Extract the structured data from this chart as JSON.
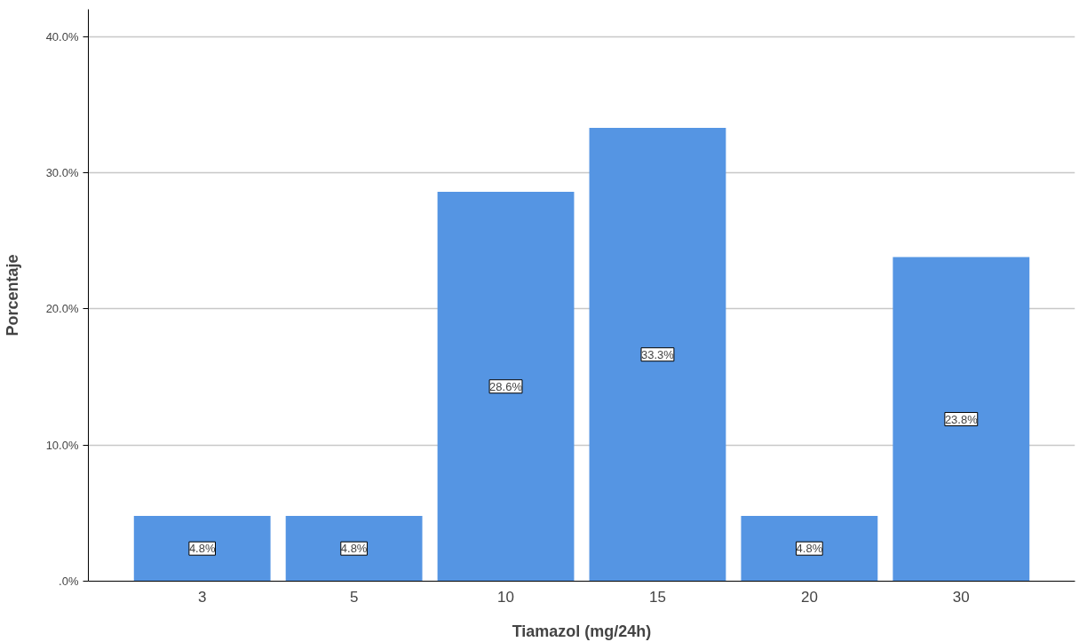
{
  "chart_data": {
    "type": "bar",
    "xlabel": "Tiamazol (mg/24h)",
    "ylabel": "Porcentaje",
    "categories": [
      "3",
      "5",
      "10",
      "15",
      "20",
      "30"
    ],
    "values": [
      4.8,
      4.8,
      28.6,
      33.3,
      4.8,
      23.8
    ],
    "value_labels": [
      "4.8%",
      "4.8%",
      "28.6%",
      "33.3%",
      "4.8%",
      "23.8%"
    ],
    "color": "#5595e3",
    "ylim": [
      0,
      42
    ],
    "yticks": [
      {
        "value": 0,
        "label": ".0%"
      },
      {
        "value": 10,
        "label": "10.0%"
      },
      {
        "value": 20,
        "label": "20.0%"
      },
      {
        "value": 30,
        "label": "30.0%"
      },
      {
        "value": 40,
        "label": "40.0%"
      }
    ],
    "grid": "y"
  }
}
